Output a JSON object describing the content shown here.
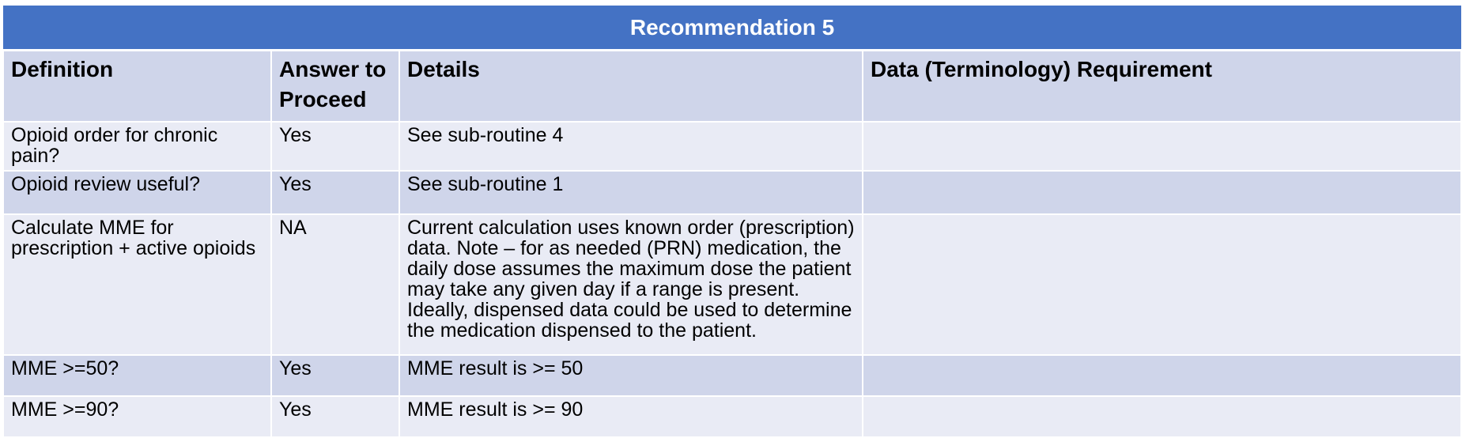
{
  "title": "Recommendation 5",
  "columns": [
    "Definition",
    "Answer to Proceed",
    "Details",
    "Data (Terminology) Requirement"
  ],
  "rows": [
    {
      "definition": "Opioid order for chronic pain?",
      "answer": "Yes",
      "details": "See sub-routine 4",
      "requirement": ""
    },
    {
      "definition": "Opioid review useful?",
      "answer": "Yes",
      "details": "See sub-routine 1",
      "requirement": ""
    },
    {
      "definition": "Calculate MME for prescription + active opioids",
      "answer": "NA",
      "details": "Current calculation uses known order (prescription) data. Note – for as needed (PRN) medication, the daily dose assumes the maximum dose the patient may take any given day if a range is present. Ideally, dispensed data could be used to determine the medication dispensed to the patient.",
      "requirement": ""
    },
    {
      "definition": "MME >=50?",
      "answer": "Yes",
      "details": "MME result is >= 50",
      "requirement": ""
    },
    {
      "definition": "MME >=90?",
      "answer": "Yes",
      "details": "MME result is >= 90",
      "requirement": ""
    }
  ]
}
